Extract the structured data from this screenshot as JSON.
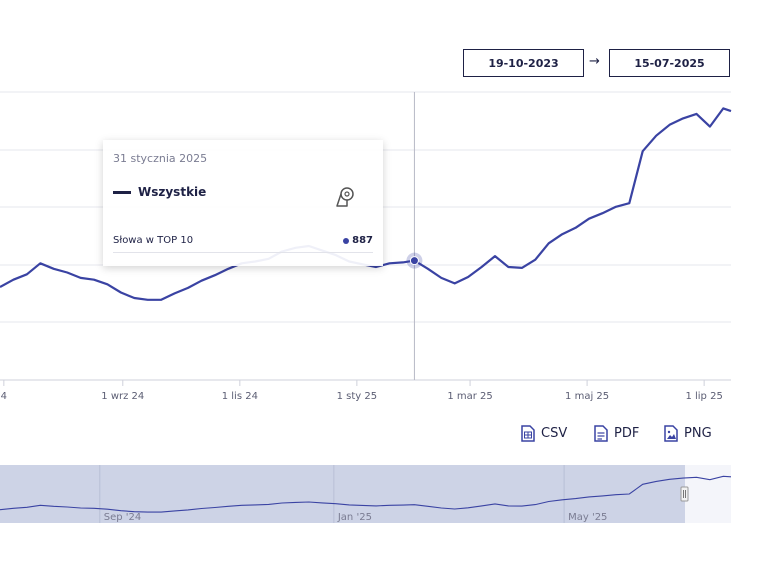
{
  "date_range": {
    "from": "19-10-2023",
    "arrow": "→",
    "to": "15-07-2025"
  },
  "tooltip": {
    "date": "31 stycznia 2025",
    "series_name": "Wszystkie",
    "metric_label": "Słowa w TOP 10",
    "metric_value": "887"
  },
  "export": {
    "csv": "CSV",
    "pdf": "PDF",
    "png": "PNG"
  },
  "colors": {
    "series": "#3a43a3",
    "text": "#1e2145",
    "navigator_fill": "#cdd3e6"
  },
  "chart_data": {
    "type": "line",
    "title": "",
    "xlabel": "",
    "ylabel": "",
    "grid": true,
    "x_tick_labels": [
      "4",
      "1 wrz 24",
      "1 lis 24",
      "1 sty 25",
      "1 mar 25",
      "1 maj 25",
      "1 lip 25"
    ],
    "x_tick_dates": [
      "2024-07-01",
      "2024-09-01",
      "2024-11-01",
      "2025-01-01",
      "2025-03-01",
      "2025-05-01",
      "2025-07-01"
    ],
    "x_range": [
      "2024-06-29",
      "2025-07-15"
    ],
    "series": [
      {
        "name": "Wszystkie",
        "points": [
          [
            "2024-06-29",
            858
          ],
          [
            "2024-07-06",
            866
          ],
          [
            "2024-07-13",
            872
          ],
          [
            "2024-07-20",
            884
          ],
          [
            "2024-07-27",
            878
          ],
          [
            "2024-08-03",
            874
          ],
          [
            "2024-08-10",
            868
          ],
          [
            "2024-08-17",
            866
          ],
          [
            "2024-08-24",
            861
          ],
          [
            "2024-08-31",
            852
          ],
          [
            "2024-09-07",
            846
          ],
          [
            "2024-09-14",
            844
          ],
          [
            "2024-09-21",
            844
          ],
          [
            "2024-09-28",
            851
          ],
          [
            "2024-10-05",
            857
          ],
          [
            "2024-10-12",
            865
          ],
          [
            "2024-10-19",
            871
          ],
          [
            "2024-10-26",
            878
          ],
          [
            "2024-11-02",
            884
          ],
          [
            "2024-11-09",
            886
          ],
          [
            "2024-11-16",
            889
          ],
          [
            "2024-11-23",
            897
          ],
          [
            "2024-11-30",
            901
          ],
          [
            "2024-12-07",
            903
          ],
          [
            "2024-12-14",
            898
          ],
          [
            "2024-12-21",
            893
          ],
          [
            "2024-12-28",
            886
          ],
          [
            "2025-01-04",
            883
          ],
          [
            "2025-01-11",
            880
          ],
          [
            "2025-01-18",
            884
          ],
          [
            "2025-01-25",
            885
          ],
          [
            "2025-01-31",
            887
          ],
          [
            "2025-02-07",
            878
          ],
          [
            "2025-02-14",
            868
          ],
          [
            "2025-02-21",
            862
          ],
          [
            "2025-02-28",
            869
          ],
          [
            "2025-03-07",
            880
          ],
          [
            "2025-03-14",
            892
          ],
          [
            "2025-03-21",
            880
          ],
          [
            "2025-03-28",
            879
          ],
          [
            "2025-04-04",
            888
          ],
          [
            "2025-04-11",
            906
          ],
          [
            "2025-04-18",
            916
          ],
          [
            "2025-04-25",
            923
          ],
          [
            "2025-05-02",
            933
          ],
          [
            "2025-05-09",
            939
          ],
          [
            "2025-05-16",
            946
          ],
          [
            "2025-05-23",
            950
          ],
          [
            "2025-05-30",
            1007
          ],
          [
            "2025-06-06",
            1024
          ],
          [
            "2025-06-13",
            1036
          ],
          [
            "2025-06-20",
            1043
          ],
          [
            "2025-06-27",
            1048
          ],
          [
            "2025-07-04",
            1034
          ],
          [
            "2025-07-11",
            1054
          ],
          [
            "2025-07-15",
            1051
          ]
        ]
      }
    ],
    "navigator": {
      "tick_labels": [
        "Sep '24",
        "Jan '25",
        "May '25"
      ],
      "tick_dates": [
        "2024-09-01",
        "2025-01-01",
        "2025-05-01"
      ],
      "selected_range": [
        "2023-10-19",
        "2025-07-15"
      ]
    }
  }
}
